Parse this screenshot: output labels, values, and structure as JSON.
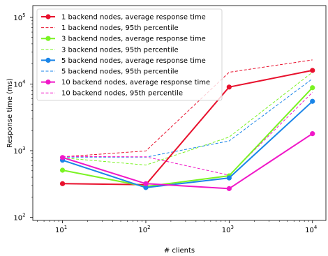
{
  "chart_data": {
    "type": "line",
    "xlabel": "# clients",
    "ylabel": "Response time (ms)",
    "xscale": "log",
    "yscale": "log",
    "xlim": [
      4.4,
      14500
    ],
    "ylim": [
      90,
      150000
    ],
    "x_ticks": [
      {
        "value": 10,
        "base": "10",
        "exp": "1"
      },
      {
        "value": 100,
        "base": "10",
        "exp": "2"
      },
      {
        "value": 1000,
        "base": "10",
        "exp": "3"
      },
      {
        "value": 10000,
        "base": "10",
        "exp": "4"
      }
    ],
    "y_ticks": [
      {
        "value": 100,
        "base": "10",
        "exp": "2"
      },
      {
        "value": 1000,
        "base": "10",
        "exp": "3"
      },
      {
        "value": 10000,
        "base": "10",
        "exp": "4"
      },
      {
        "value": 100000,
        "base": "10",
        "exp": "5"
      }
    ],
    "grid": false,
    "legend_position": "top-left",
    "x": [
      10,
      100,
      1000,
      10000
    ],
    "series": [
      {
        "name": "1 backend nodes, average response time",
        "color": "#e8112d",
        "style": "solid",
        "marker": true,
        "values": [
          320,
          310,
          9000,
          16000
        ]
      },
      {
        "name": "1 backend nodes, 95th percentile",
        "color": "#e8112d",
        "style": "dashed",
        "marker": false,
        "values": [
          810,
          990,
          15000,
          23000
        ]
      },
      {
        "name": "3 backend nodes, average response time",
        "color": "#7af322",
        "style": "solid",
        "marker": true,
        "values": [
          510,
          290,
          420,
          8800
        ]
      },
      {
        "name": "3 backend nodes, 95th percentile",
        "color": "#7af322",
        "style": "dashed",
        "marker": false,
        "values": [
          780,
          610,
          1600,
          15000
        ]
      },
      {
        "name": "5 backend nodes, average response time",
        "color": "#1a85e8",
        "style": "solid",
        "marker": true,
        "values": [
          720,
          280,
          390,
          5500
        ]
      },
      {
        "name": "5 backend nodes, 95th percentile",
        "color": "#1a85e8",
        "style": "dashed",
        "marker": false,
        "values": [
          800,
          800,
          1400,
          12000
        ]
      },
      {
        "name": "10 backend nodes, average response time",
        "color": "#f018c8",
        "style": "solid",
        "marker": true,
        "values": [
          790,
          320,
          270,
          1800
        ]
      },
      {
        "name": "10 backend nodes, 95th percentile",
        "color": "#f018c8",
        "style": "dashed",
        "marker": false,
        "values": [
          820,
          810,
          430,
          7500
        ]
      }
    ]
  }
}
